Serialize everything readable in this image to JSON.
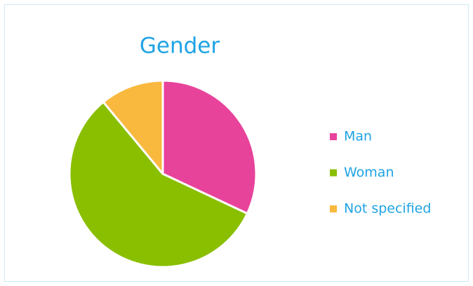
{
  "chart_data": {
    "type": "pie",
    "title": "Gender",
    "categories": [
      "Man",
      "Woman",
      "Not specified"
    ],
    "values": [
      32,
      57,
      11
    ],
    "colors": [
      "#e8439b",
      "#8abf00",
      "#f9b93f"
    ],
    "legend": "right"
  }
}
